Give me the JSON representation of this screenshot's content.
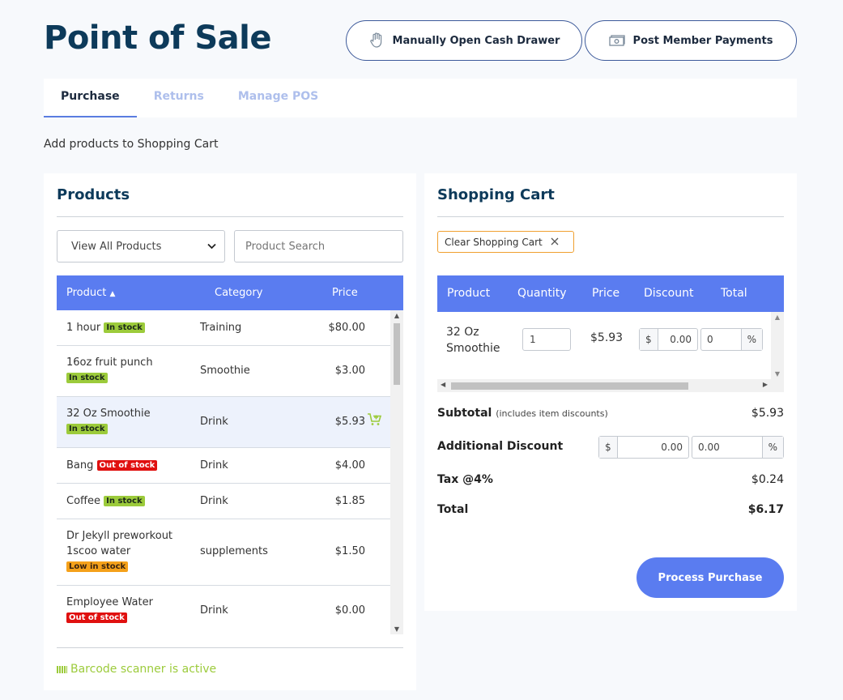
{
  "page": {
    "title": "Point of Sale",
    "subtitle": "Add products to Shopping Cart"
  },
  "header_buttons": {
    "drawer": {
      "label": "Manually Open Cash Drawer",
      "icon": "hand-icon"
    },
    "payments": {
      "label": "Post Member Payments",
      "icon": "cash-icon"
    }
  },
  "tabs": [
    {
      "label": "Purchase",
      "active": true
    },
    {
      "label": "Returns",
      "active": false
    },
    {
      "label": "Manage POS",
      "active": false
    }
  ],
  "products": {
    "title": "Products",
    "filter_selected": "View All Products",
    "search_placeholder": "Product Search",
    "columns": {
      "product": "Product",
      "sort_indicator": "▲",
      "category": "Category",
      "price": "Price"
    },
    "rows": [
      {
        "name": "1 hour",
        "badge": "In stock",
        "category": "Training",
        "price": "$80.00"
      },
      {
        "name": "16oz fruit punch",
        "badge": "In stock",
        "category": "Smoothie",
        "price": "$3.00"
      },
      {
        "name": "32 Oz Smoothie",
        "badge": "In stock",
        "category": "Drink",
        "price": "$5.93"
      },
      {
        "name": "Bang",
        "badge": "Out of stock",
        "category": "Drink",
        "price": "$4.00"
      },
      {
        "name": "Coffee",
        "badge": "In stock",
        "category": "Drink",
        "price": "$1.85"
      },
      {
        "name_line1": "Dr Jekyll preworkout",
        "name_line2": "1scoo water",
        "badge": "Low in stock",
        "category": "supplements",
        "price": "$1.50"
      },
      {
        "name": "Employee Water",
        "badge": "Out of stock",
        "category": "Drink",
        "price": "$0.00"
      }
    ],
    "scanner_status": "Barcode scanner is active"
  },
  "cart": {
    "title": "Shopping Cart",
    "clear_label": "Clear Shopping Cart",
    "columns": {
      "product": "Product",
      "quantity": "Quantity",
      "price": "Price",
      "discount": "Discount",
      "total": "Total"
    },
    "items": [
      {
        "name_line1": "32 Oz",
        "name_line2": "Smoothie",
        "quantity": "1",
        "price": "$5.93",
        "discount_currency_symbol": "$",
        "discount_amount": "0.00",
        "discount_percent": "0",
        "percent_symbol": "%"
      }
    ],
    "summary": {
      "subtotal_label": "Subtotal",
      "subtotal_note": "(includes item discounts)",
      "subtotal": "$5.93",
      "additional_discount_label": "Additional Discount",
      "additional_discount_currency_symbol": "$",
      "additional_discount_amount": "0.00",
      "additional_discount_percent": "0.00",
      "percent_symbol": "%",
      "tax_label": "Tax @4%",
      "tax": "$0.24",
      "total_label": "Total",
      "total": "$6.17"
    },
    "process_label": "Process Purchase"
  },
  "colors": {
    "accent": "#5a7cf0",
    "title": "#0d3a5a",
    "in_stock": "#9ccb3b",
    "out_of_stock": "#e0100f",
    "low_stock": "#f5a11a"
  }
}
